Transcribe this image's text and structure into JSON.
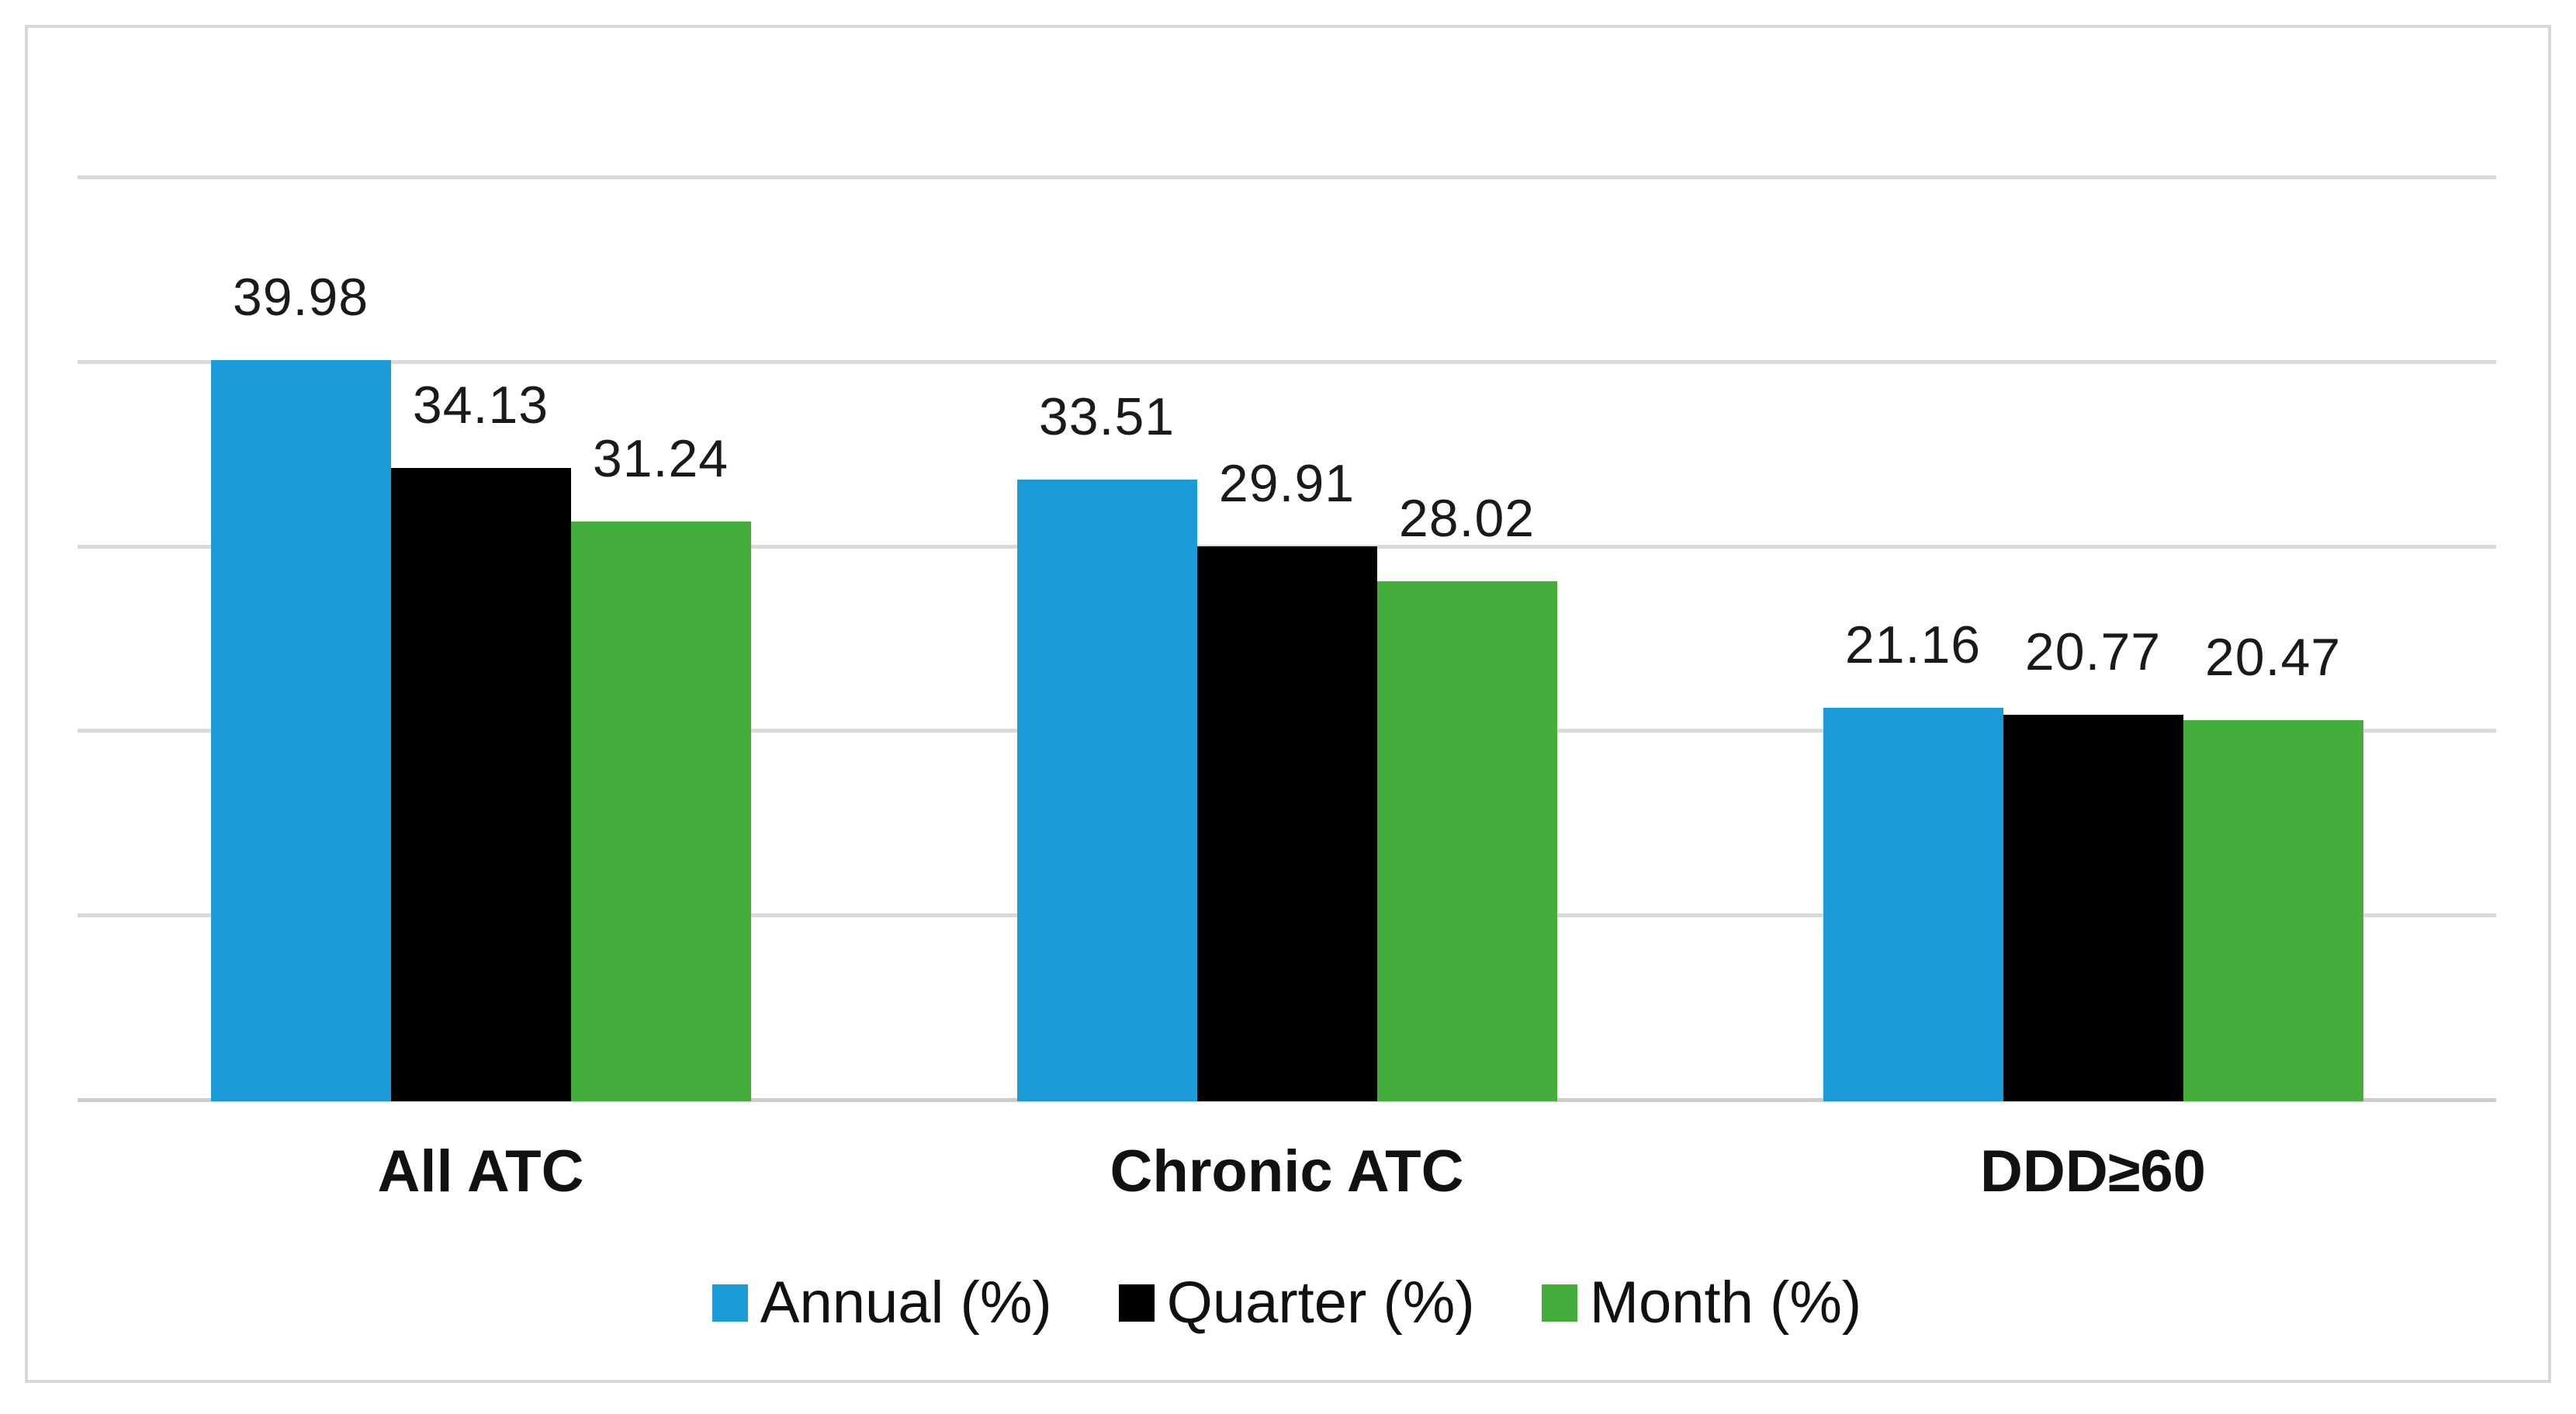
{
  "figure": {
    "background_color": "#ffffff",
    "border_color": "#d8d8d8"
  },
  "chart_data": {
    "type": "bar",
    "title": "",
    "xlabel": "",
    "ylabel": "",
    "categories": [
      "All ATC",
      "Chronic ATC",
      "DDD≥60"
    ],
    "series": [
      {
        "name": "Annual (%)",
        "color": "#1b9cd8",
        "values": [
          39.98,
          33.51,
          21.16
        ]
      },
      {
        "name": "Quarter (%)",
        "color": "#000000",
        "values": [
          34.13,
          29.91,
          20.77
        ]
      },
      {
        "name": "Month (%)",
        "color": "#44ad3b",
        "values": [
          31.24,
          28.02,
          20.47
        ]
      }
    ],
    "data_labels": [
      [
        "39.98",
        "34.13",
        "31.24"
      ],
      [
        "33.51",
        "29.91",
        "28.02"
      ],
      [
        "21.16",
        "20.77",
        "20.47"
      ]
    ],
    "ylim": [
      0,
      50
    ],
    "gridline_step": 10,
    "grid": "on",
    "gridline_color": "#d9d9d9",
    "axis_line_color": "#cccccc",
    "y_axis_labels_visible": false,
    "legend_position": "bottom"
  }
}
